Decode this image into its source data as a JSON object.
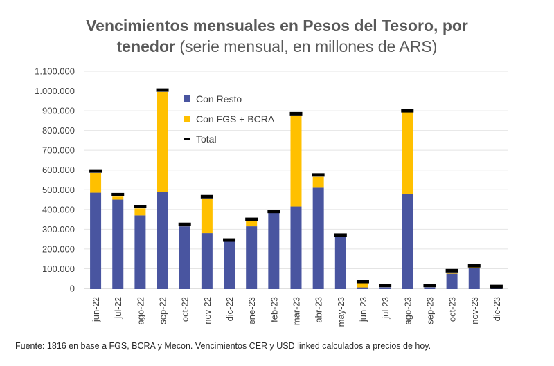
{
  "chart_data": {
    "type": "bar",
    "stacked": true,
    "title": "Vencimientos mensuales en Pesos del Tesoro, por",
    "title_bold_2": "tenedor",
    "subtitle": "(serie mensual, en millones de ARS)",
    "categories": [
      "jun-22",
      "jul-22",
      "ago-22",
      "sep-22",
      "oct-22",
      "nov-22",
      "dic-22",
      "ene-23",
      "feb-23",
      "mar-23",
      "abr-23",
      "may-23",
      "jun-23",
      "jul-23",
      "ago-23",
      "sep-23",
      "oct-23",
      "nov-23",
      "dic-23"
    ],
    "series": [
      {
        "name": "Con Resto",
        "color": "#4955A0",
        "values": [
          485000,
          450000,
          370000,
          490000,
          315000,
          280000,
          240000,
          315000,
          385000,
          415000,
          510000,
          260000,
          5000,
          5000,
          480000,
          5000,
          75000,
          105000,
          5000
        ]
      },
      {
        "name": "Con FGS + BCRA",
        "color": "#FFC000",
        "values": [
          100000,
          15000,
          35000,
          505000,
          5000,
          175000,
          0,
          25000,
          0,
          460000,
          55000,
          5000,
          25000,
          0,
          415000,
          0,
          5000,
          5000,
          0
        ]
      },
      {
        "name": "Total",
        "color": "#000000",
        "values": [
          595000,
          475000,
          415000,
          1005000,
          325000,
          465000,
          245000,
          350000,
          390000,
          885000,
          575000,
          270000,
          35000,
          15000,
          900000,
          15000,
          90000,
          115000,
          10000
        ]
      }
    ],
    "ylim": [
      0,
      1100000
    ],
    "yticks": [
      "0",
      "100.000",
      "200.000",
      "300.000",
      "400.000",
      "500.000",
      "600.000",
      "700.000",
      "800.000",
      "900.000",
      "1.000.000",
      "1.100.000"
    ],
    "ytick_values": [
      0,
      100000,
      200000,
      300000,
      400000,
      500000,
      600000,
      700000,
      800000,
      900000,
      1000000,
      1100000
    ],
    "legend_position": "top-left",
    "grid": true
  },
  "footer": "Fuente: 1816 en base a FGS, BCRA y Mecon. Vencimientos CER y USD linked calculados a precios de hoy."
}
